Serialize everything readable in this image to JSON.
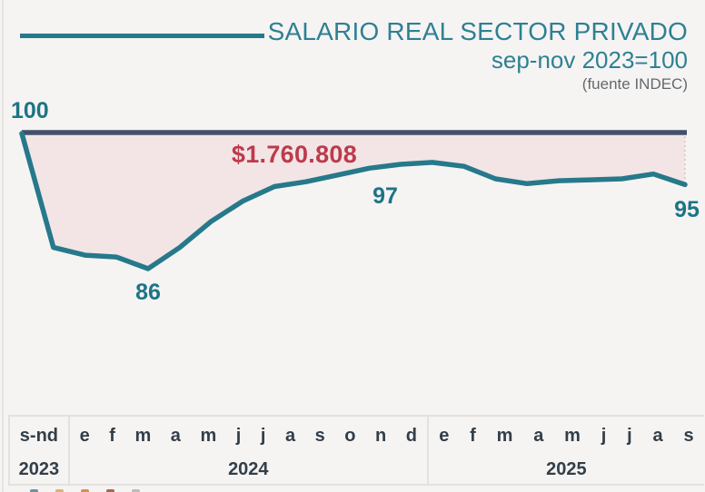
{
  "chart_data": {
    "type": "line",
    "title": "SALARIO REAL SECTOR PRIVADO",
    "subtitle": "sep-nov 2023=100",
    "source": "(fuente INDEC)",
    "legend": "line swatch top-left, teal",
    "grid": false,
    "ylim": [
      83,
      101
    ],
    "baseline_value": 100,
    "x_groups": [
      {
        "year": "2023",
        "months": [
          "s-nd"
        ]
      },
      {
        "year": "2024",
        "months": [
          "e",
          "f",
          "m",
          "a",
          "m",
          "j",
          "j",
          "a",
          "s",
          "o",
          "n",
          "d"
        ]
      },
      {
        "year": "2025",
        "months": [
          "e",
          "f",
          "m",
          "a",
          "m",
          "j",
          "j",
          "a",
          "s"
        ]
      }
    ],
    "categories": [
      "s-nd 2023",
      "e 2024",
      "f 2024",
      "m 2024",
      "a 2024",
      "m 2024",
      "j 2024",
      "j 2024",
      "a 2024",
      "s 2024",
      "o 2024",
      "n 2024",
      "d 2024",
      "e 2025",
      "f 2025",
      "m 2025",
      "a 2025",
      "m 2025",
      "j 2025",
      "j 2025",
      "a 2025",
      "s 2025"
    ],
    "values": [
      100,
      88.2,
      87.4,
      87.2,
      86,
      88.2,
      90.9,
      93,
      94.5,
      95,
      95.7,
      96.4,
      96.8,
      97,
      96.6,
      95.3,
      94.8,
      95.1,
      95.2,
      95.3,
      95.8,
      94.7
    ],
    "annotations": {
      "start": "100",
      "min": "86",
      "plateau": "97",
      "end": "95",
      "amount": "$1.760.808"
    },
    "area_between": "filled pink between baseline 100 and salary line"
  },
  "colors": {
    "background": "#f5f4f3",
    "line": "#26798b",
    "baseline": "#42506b",
    "area_fill": "#f3e5e5",
    "amount_red": "#bc3b4c",
    "number_labels": "#1d7486",
    "title": "#2e8093",
    "source_gray": "#65696c",
    "axis_text": "#333e48",
    "axis_border": "#e3e1df"
  },
  "decor": {
    "cutoff_icons": [
      {
        "name": "cutoff-icon-1",
        "color": "#6f9499"
      },
      {
        "name": "cutoff-icon-2",
        "color": "#e2b169"
      },
      {
        "name": "cutoff-icon-3",
        "color": "#d98e4b"
      },
      {
        "name": "cutoff-icon-4",
        "color": "#a2684f"
      },
      {
        "name": "cutoff-icon-5",
        "color": "#bcbcbc"
      }
    ]
  }
}
